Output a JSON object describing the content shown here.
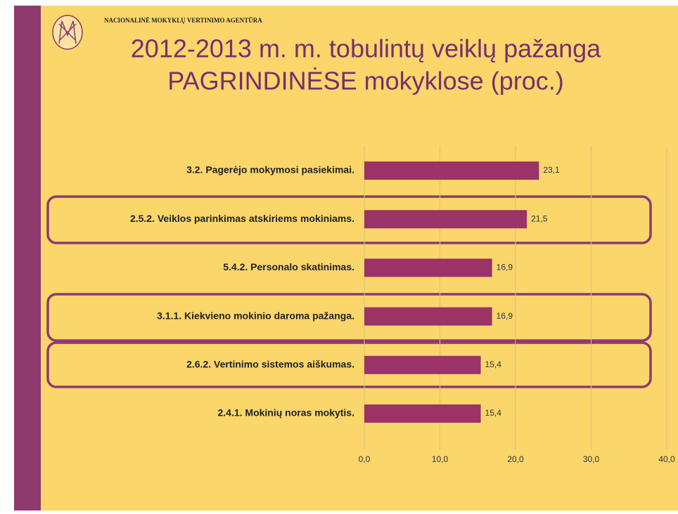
{
  "header": {
    "organization": "NACIONALINĖ MOKYKLŲ VERTINIMO AGENTŪRA"
  },
  "chart_data": {
    "type": "bar",
    "orientation": "horizontal",
    "title": [
      "2012-2013 m. m. tobulintų veiklų pažanga",
      "PAGRINDINĖSE mokyklose (proc.)"
    ],
    "categories": [
      "3.2. Pagerėjo mokymosi pasiekimai.",
      "2.5.2. Veiklos parinkimas atskiriems mokiniams.",
      "5.4.2. Personalo skatinimas.",
      "3.1.1. Kiekvieno mokinio daroma pažanga.",
      "2.6.2. Vertinimo sistemos aiškumas.",
      "2.4.1. Mokinių noras mokytis."
    ],
    "values": [
      23.1,
      21.5,
      16.9,
      16.9,
      15.4,
      15.4
    ],
    "value_labels": [
      "23,1",
      "21,5",
      "16,9",
      "16,9",
      "15,4",
      "15,4"
    ],
    "color": "#9b3366",
    "xlim": [
      0,
      40
    ],
    "xticks": [
      {
        "value": 0,
        "label": "0,0"
      },
      {
        "value": 10,
        "label": "10,0"
      },
      {
        "value": 20,
        "label": "20,0"
      },
      {
        "value": 30,
        "label": "30,0"
      },
      {
        "value": 40,
        "label": "40,0"
      }
    ],
    "grid": true
  }
}
